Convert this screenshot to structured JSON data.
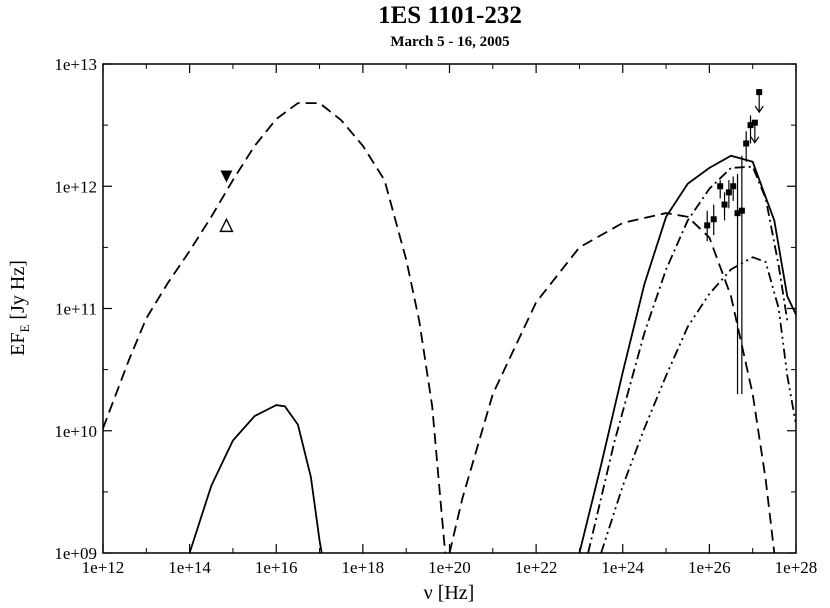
{
  "chart_data": {
    "type": "line",
    "title": "1ES 1101-232",
    "subtitle": "March 5 - 16, 2005",
    "xlabel": "ν [Hz]",
    "ylabel_main": "EF",
    "ylabel_sub": "E",
    "ylabel_units": " [Jy Hz]",
    "x_scale": "log",
    "y_scale": "log",
    "xlim_log10": [
      12,
      28
    ],
    "ylim_log10": [
      9,
      13
    ],
    "x_ticks": [
      {
        "exp": 12,
        "label": "1e+12"
      },
      {
        "exp": 14,
        "label": "1e+14"
      },
      {
        "exp": 16,
        "label": "1e+16"
      },
      {
        "exp": 18,
        "label": "1e+18"
      },
      {
        "exp": 20,
        "label": "1e+20"
      },
      {
        "exp": 22,
        "label": "1e+22"
      },
      {
        "exp": 24,
        "label": "1e+24"
      },
      {
        "exp": 26,
        "label": "1e+26"
      },
      {
        "exp": 28,
        "label": "1e+28"
      }
    ],
    "y_ticks": [
      {
        "exp": 9,
        "label": "1e+09"
      },
      {
        "exp": 10,
        "label": "1e+10"
      },
      {
        "exp": 11,
        "label": "1e+11"
      },
      {
        "exp": 12,
        "label": "1e+12"
      },
      {
        "exp": 13,
        "label": "1e+13"
      }
    ],
    "grid": false,
    "series": [
      {
        "style": "dashed",
        "points_log10": [
          [
            12.0,
            10.02
          ],
          [
            12.6,
            10.58
          ],
          [
            13.0,
            10.92
          ],
          [
            13.5,
            11.21
          ],
          [
            14.0,
            11.47
          ],
          [
            14.5,
            11.75
          ],
          [
            15.0,
            12.05
          ],
          [
            15.5,
            12.33
          ],
          [
            16.0,
            12.55
          ],
          [
            16.5,
            12.68
          ],
          [
            17.0,
            12.68
          ],
          [
            17.5,
            12.54
          ],
          [
            18.0,
            12.33
          ],
          [
            18.5,
            12.05
          ],
          [
            19.0,
            11.4
          ],
          [
            19.3,
            10.9
          ],
          [
            19.6,
            10.2
          ],
          [
            19.8,
            9.4
          ],
          [
            19.9,
            9.0
          ]
        ]
      },
      {
        "style": "dashed",
        "points_log10": [
          [
            20.0,
            9.0
          ],
          [
            20.3,
            9.45
          ],
          [
            21.0,
            10.3
          ],
          [
            22.0,
            11.05
          ],
          [
            23.0,
            11.5
          ],
          [
            24.0,
            11.7
          ],
          [
            25.0,
            11.78
          ],
          [
            25.5,
            11.75
          ],
          [
            26.0,
            11.58
          ],
          [
            26.5,
            11.1
          ],
          [
            27.0,
            10.3
          ],
          [
            27.3,
            9.6
          ],
          [
            27.5,
            9.0
          ]
        ]
      },
      {
        "style": "solid",
        "points_log10": [
          [
            14.0,
            9.0
          ],
          [
            14.5,
            9.55
          ],
          [
            15.0,
            9.92
          ],
          [
            15.5,
            10.12
          ],
          [
            16.0,
            10.21
          ],
          [
            16.2,
            10.2
          ],
          [
            16.5,
            10.05
          ],
          [
            16.8,
            9.62
          ],
          [
            17.0,
            9.1
          ],
          [
            17.05,
            9.0
          ]
        ]
      },
      {
        "style": "solid",
        "points_log10": [
          [
            23.0,
            9.0
          ],
          [
            23.5,
            9.72
          ],
          [
            24.0,
            10.48
          ],
          [
            24.5,
            11.2
          ],
          [
            25.0,
            11.75
          ],
          [
            25.5,
            12.02
          ],
          [
            26.0,
            12.15
          ],
          [
            26.5,
            12.25
          ],
          [
            27.0,
            12.2
          ],
          [
            27.5,
            11.72
          ],
          [
            27.8,
            11.1
          ],
          [
            28.0,
            10.95
          ]
        ]
      },
      {
        "style": "dashdot",
        "points_log10": [
          [
            23.2,
            9.0
          ],
          [
            23.8,
            9.9
          ],
          [
            24.5,
            10.8
          ],
          [
            25.0,
            11.32
          ],
          [
            25.5,
            11.72
          ],
          [
            26.0,
            11.98
          ],
          [
            26.5,
            12.15
          ],
          [
            27.0,
            12.16
          ],
          [
            27.3,
            11.9
          ],
          [
            27.6,
            11.35
          ],
          [
            27.8,
            10.9
          ]
        ]
      },
      {
        "style": "dashdotdot",
        "points_log10": [
          [
            23.5,
            9.0
          ],
          [
            24.0,
            9.55
          ],
          [
            24.5,
            10.02
          ],
          [
            25.0,
            10.45
          ],
          [
            25.5,
            10.85
          ],
          [
            26.0,
            11.12
          ],
          [
            26.5,
            11.32
          ],
          [
            27.0,
            11.42
          ],
          [
            27.3,
            11.38
          ],
          [
            27.6,
            11.0
          ],
          [
            27.8,
            10.45
          ],
          [
            28.0,
            10.05
          ]
        ]
      }
    ],
    "markers": [
      {
        "shape": "triangle-down-filled",
        "x_log10": 14.85,
        "y_log10": 12.08
      },
      {
        "shape": "triangle-up-open",
        "x_log10": 14.85,
        "y_log10": 11.68
      }
    ],
    "gamma_points": [
      {
        "x_log10": 25.95,
        "y_log10": 11.68,
        "err_lo": 11.55,
        "err_hi": 11.8
      },
      {
        "x_log10": 26.1,
        "y_log10": 11.73,
        "err_lo": 11.6,
        "err_hi": 11.85
      },
      {
        "x_log10": 26.25,
        "y_log10": 12.0,
        "err_lo": 11.9,
        "err_hi": 12.05
      },
      {
        "x_log10": 26.35,
        "y_log10": 11.85,
        "err_lo": 11.72,
        "err_hi": 11.95
      },
      {
        "x_log10": 26.45,
        "y_log10": 11.95,
        "err_lo": 11.82,
        "err_hi": 12.05
      },
      {
        "x_log10": 26.55,
        "y_log10": 12.0,
        "err_lo": 11.88,
        "err_hi": 12.08
      },
      {
        "x_log10": 26.65,
        "y_log10": 11.78,
        "err_lo": 10.3,
        "err_hi": 12.1
      },
      {
        "x_log10": 26.75,
        "y_log10": 11.8,
        "err_lo": 10.3,
        "err_hi": 12.25
      },
      {
        "x_log10": 26.85,
        "y_log10": 12.35,
        "err_lo": 12.2,
        "err_hi": 12.45
      },
      {
        "x_log10": 26.95,
        "y_log10": 12.5,
        "err_lo": 12.35,
        "err_hi": 12.58
      }
    ],
    "upper_limits": [
      {
        "x_log10": 27.05,
        "y_log10": 12.52
      },
      {
        "x_log10": 27.15,
        "y_log10": 12.77
      }
    ]
  }
}
